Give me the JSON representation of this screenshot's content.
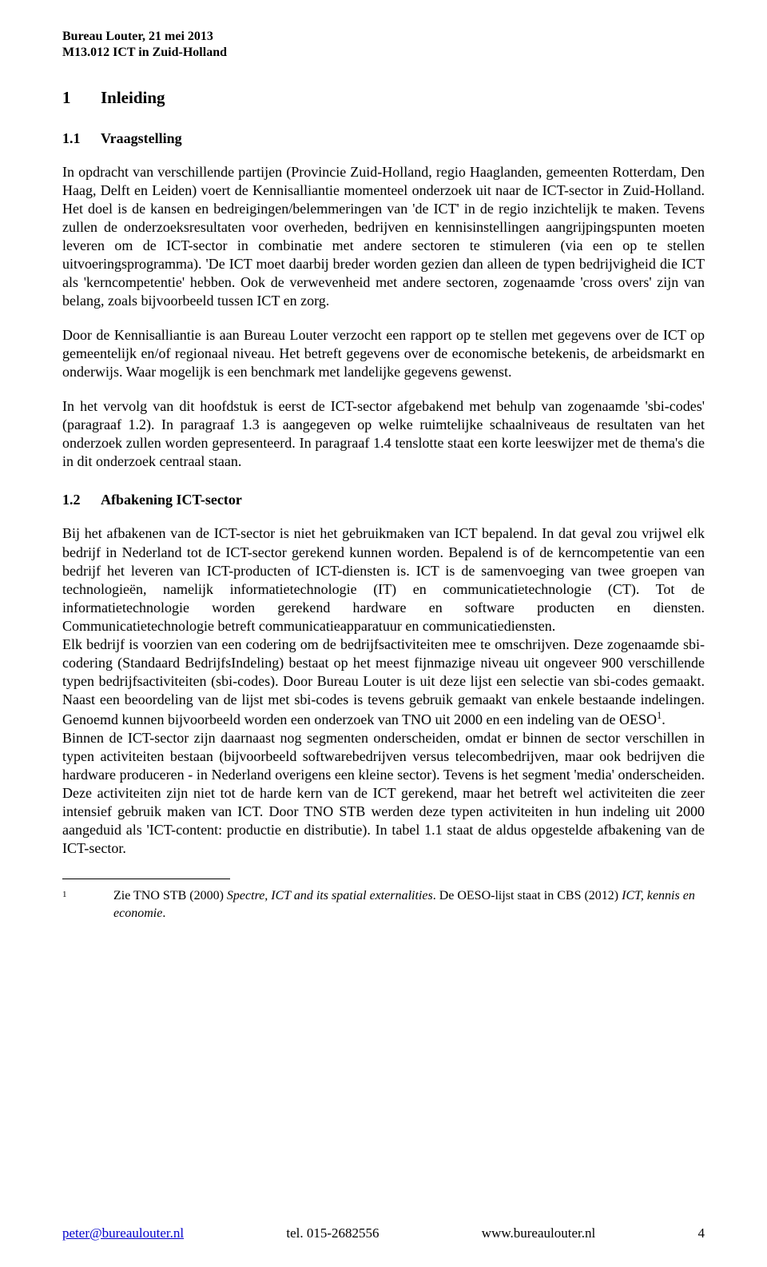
{
  "header": {
    "line1": "Bureau Louter, 21 mei 2013",
    "line2": "M13.012 ICT in Zuid-Holland"
  },
  "h1": {
    "num": "1",
    "title": "Inleiding"
  },
  "s11": {
    "num": "1.1",
    "title": "Vraagstelling"
  },
  "p1": "In opdracht van verschillende partijen (Provincie Zuid-Holland, regio Haaglanden, gemeenten Rotterdam, Den Haag, Delft en Leiden) voert de Kennisalliantie momenteel onderzoek uit naar de ICT-sector in Zuid-Holland. Het doel is de kansen en bedreigingen/belemmeringen van 'de ICT' in de regio inzichtelijk te maken. Tevens zullen de onderzoeksresultaten voor overheden, bedrijven en kennisinstellingen aangrijpingspunten moeten leveren om de ICT-sector in combinatie met andere sectoren te stimuleren (via een op te stellen uitvoeringsprogramma). 'De ICT moet daarbij breder worden gezien dan alleen de typen bedrijvigheid die ICT als 'kerncompetentie' hebben. Ook de verwevenheid met andere sectoren, zogenaamde 'cross overs' zijn van belang, zoals bijvoorbeeld tussen ICT en zorg.",
  "p2": "Door de Kennisalliantie is aan Bureau Louter verzocht een rapport op te stellen met gegevens over de ICT op gemeentelijk en/of regionaal niveau. Het betreft gegevens over de economische betekenis, de arbeidsmarkt en onderwijs. Waar mogelijk is een benchmark met landelijke gegevens gewenst.",
  "p3": "In het vervolg van dit hoofdstuk is eerst de ICT-sector afgebakend met behulp van zogenaamde 'sbi-codes' (paragraaf 1.2). In paragraaf 1.3 is aangegeven op welke ruimtelijke schaalniveaus de resultaten van het onderzoek zullen worden gepresenteerd. In paragraaf 1.4 tenslotte staat een korte leeswijzer met de thema's die in dit onderzoek centraal staan.",
  "s12": {
    "num": "1.2",
    "title": "Afbakening ICT-sector"
  },
  "p4a": "Bij het afbakenen van de ICT-sector is niet het gebruikmaken van ICT bepalend. In dat geval zou vrijwel elk bedrijf in Nederland tot de ICT-sector gerekend kunnen worden. Bepalend is of de kerncompetentie van een bedrijf het leveren van ICT-producten of ICT-diensten is. ICT is de samenvoeging van twee groepen van technologieën, namelijk informatietechnologie (IT) en communicatietechnologie (CT). Tot de informatietechnologie worden gerekend hardware en software producten en diensten. Communicatietechnologie betreft communicatieapparatuur en communicatiediensten.",
  "p4b": "Elk bedrijf is voorzien van een codering om de bedrijfsactiviteiten mee te omschrijven. Deze zogenaamde sbi-codering (Standaard BedrijfsIndeling) bestaat op het meest fijnmazige niveau uit ongeveer 900 verschillende typen bedrijfsactiviteiten (sbi-codes). Door Bureau Louter is uit deze lijst een selectie van sbi-codes gemaakt. Naast een beoordeling van de lijst met sbi-codes is tevens gebruik gemaakt van enkele bestaande indelingen. Genoemd kunnen bijvoorbeeld worden een onderzoek van TNO uit 2000 en een indeling van de OESO",
  "p4b_sup": "1",
  "p4b_tail": ".",
  "p4c": "Binnen de ICT-sector zijn daarnaast nog segmenten onderscheiden, omdat er binnen de sector verschillen in typen activiteiten bestaan (bijvoorbeeld softwarebedrijven versus telecombedrijven, maar ook bedrijven die hardware produceren - in Nederland overigens een kleine sector). Tevens is het segment 'media' onderscheiden. Deze activiteiten zijn niet tot de harde kern van de ICT gerekend, maar het betreft wel activiteiten die zeer intensief gebruik maken van ICT. Door TNO STB werden deze typen activiteiten in hun indeling uit 2000 aangeduid als 'ICT-content: productie en distributie). In tabel 1.1 staat de aldus opgestelde afbakening van de ICT-sector.",
  "footnote": {
    "num": "1",
    "pre": "Zie TNO STB (2000) ",
    "italic1": "Spectre, ICT and its spatial externalities",
    "mid": ". De OESO-lijst staat in CBS (2012) ",
    "italic2": "ICT, kennis en economie",
    "post": "."
  },
  "footer": {
    "email": "peter@bureaulouter.nl",
    "tel": "tel. 015-2682556",
    "url": "www.bureaulouter.nl",
    "page": "4"
  }
}
